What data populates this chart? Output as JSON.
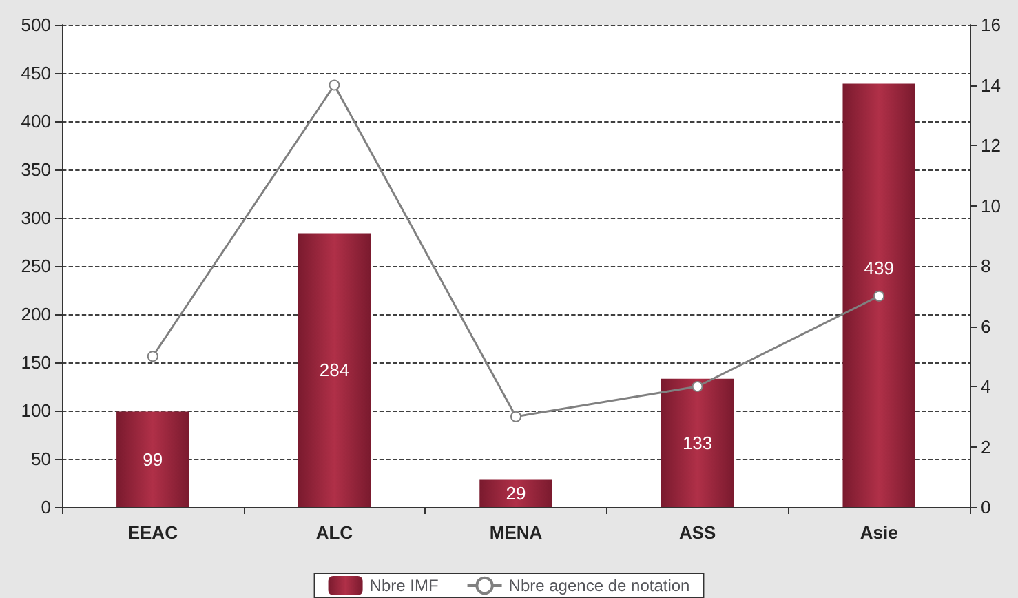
{
  "chart_data": {
    "type": "bar",
    "categories": [
      "EEAC",
      "ALC",
      "MENA",
      "ASS",
      "Asie"
    ],
    "series": [
      {
        "name": "Nbre IMF",
        "type": "bar",
        "color": "#7a1a2e",
        "values": [
          99,
          284,
          29,
          133,
          439
        ],
        "value_labels": [
          "99",
          "284",
          "29",
          "133",
          "439"
        ]
      },
      {
        "name": "Nbre agence de notation",
        "type": "line",
        "axis": "y2",
        "color": "#808080",
        "marker": "circle",
        "values": [
          5,
          14,
          3,
          4,
          7
        ]
      }
    ],
    "ylim": [
      0,
      500
    ],
    "yticks": [
      0,
      50,
      100,
      150,
      200,
      250,
      300,
      350,
      400,
      450,
      500
    ],
    "y2lim": [
      0,
      16
    ],
    "y2ticks": [
      0,
      2,
      4,
      6,
      8,
      10,
      12,
      14,
      16
    ],
    "grid": "y",
    "legend": "bottom"
  }
}
